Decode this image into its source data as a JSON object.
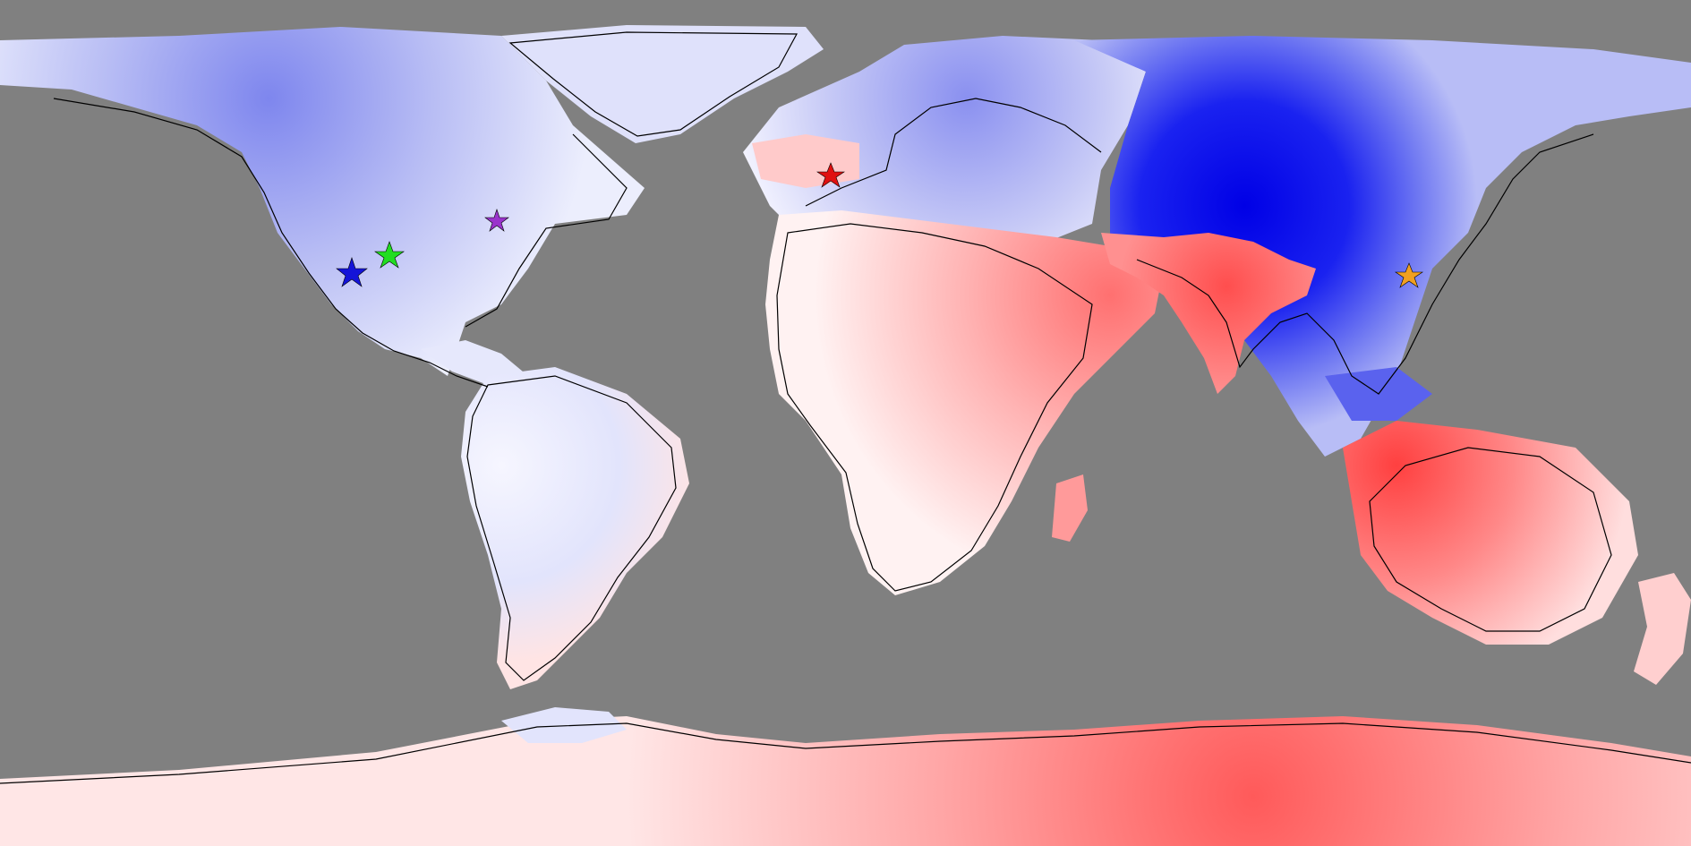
{
  "map": {
    "projection": "equirectangular",
    "ocean_color": "#808080",
    "diverging_palette": {
      "negative_strong": "#0000e8",
      "negative_weak": "#eef0ff",
      "neutral": "#ffffff",
      "positive_weak": "#ffe8e8",
      "positive_strong": "#ff4040"
    },
    "coastline_color": "#000000",
    "markers": [
      {
        "name": "star-marker-blue",
        "color": "#1414d8"
      },
      {
        "name": "star-marker-green",
        "color": "#22dd22"
      },
      {
        "name": "star-marker-purple",
        "color": "#9a33cc"
      },
      {
        "name": "star-marker-red",
        "color": "#e01010"
      },
      {
        "name": "star-marker-orange",
        "color": "#f0a020"
      }
    ]
  }
}
